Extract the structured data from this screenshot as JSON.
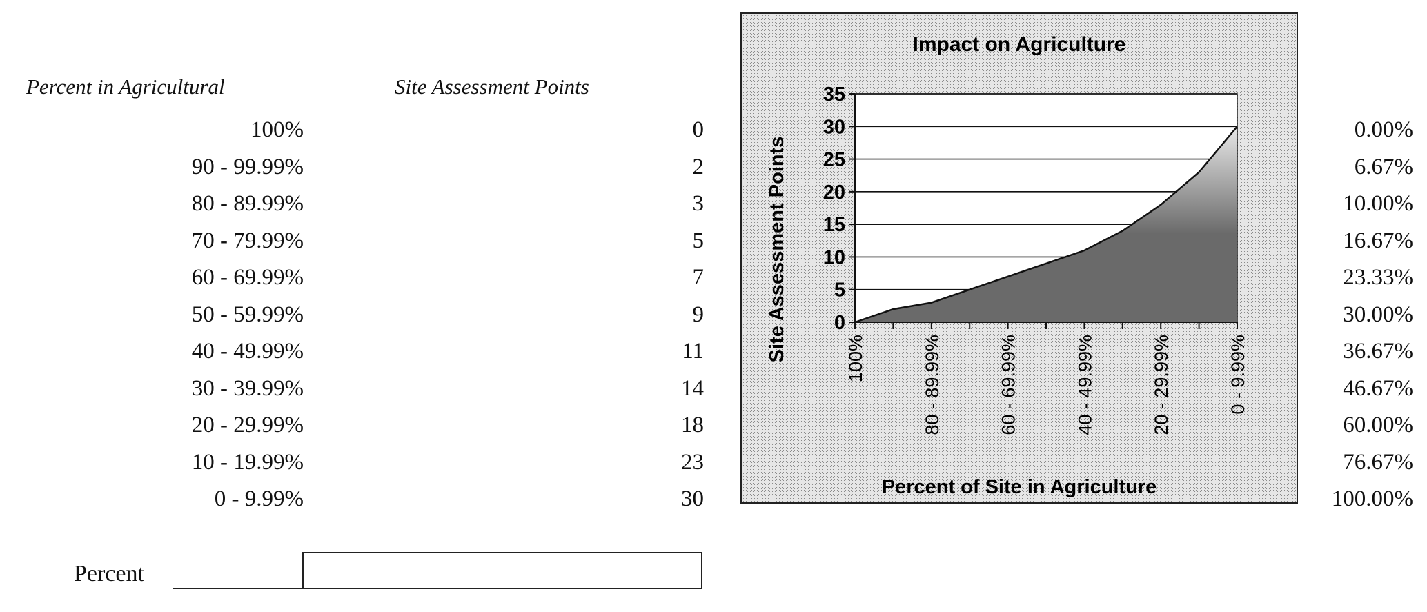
{
  "table": {
    "header_range": "Percent in Agricultural",
    "header_points": "Site Assessment Points",
    "rows": [
      {
        "range": "100%",
        "points": "0",
        "pct": "0.00%"
      },
      {
        "range": "90 - 99.99%",
        "points": "2",
        "pct": "6.67%"
      },
      {
        "range": "80 - 89.99%",
        "points": "3",
        "pct": "10.00%"
      },
      {
        "range": "70 - 79.99%",
        "points": "5",
        "pct": "16.67%"
      },
      {
        "range": "60 - 69.99%",
        "points": "7",
        "pct": "23.33%"
      },
      {
        "range": "50 - 59.99%",
        "points": "9",
        "pct": "30.00%"
      },
      {
        "range": "40 - 49.99%",
        "points": "11",
        "pct": "36.67%"
      },
      {
        "range": "30 - 39.99%",
        "points": "14",
        "pct": "46.67%"
      },
      {
        "range": "20 - 29.99%",
        "points": "18",
        "pct": "60.00%"
      },
      {
        "range": "10 - 19.99%",
        "points": "23",
        "pct": "76.67%"
      },
      {
        "range": "0 - 9.99%",
        "points": "30",
        "pct": "100.00%"
      }
    ]
  },
  "percent_input": {
    "label": "Percent",
    "value": ""
  },
  "chart_data": {
    "type": "area",
    "title": "Impact on Agriculture",
    "xlabel": "Percent of Site in Agriculture",
    "ylabel": "Site Assessment Points",
    "categories": [
      "100%",
      "90 - 99.99%",
      "80 - 89.99%",
      "70 - 79.99%",
      "60 - 69.99%",
      "50 - 59.99%",
      "40 - 49.99%",
      "30 - 39.99%",
      "20 - 29.99%",
      "10 - 19.99%",
      "0 - 9.99%"
    ],
    "x_tick_labels_shown": [
      "100%",
      "80 - 89.99%",
      "60 - 69.99%",
      "40 - 49.99%",
      "20 - 29.99%",
      "0 - 9.99%"
    ],
    "values": [
      0,
      2,
      3,
      5,
      7,
      9,
      11,
      14,
      18,
      23,
      30
    ],
    "ylim": [
      0,
      35
    ],
    "yticks": [
      0,
      5,
      10,
      15,
      20,
      25,
      30,
      35
    ],
    "grid": true,
    "legend": "none",
    "colors": {
      "area_dark": "#6a6a6a",
      "area_light": "#ffffff",
      "background": "#d9d9d9"
    }
  }
}
